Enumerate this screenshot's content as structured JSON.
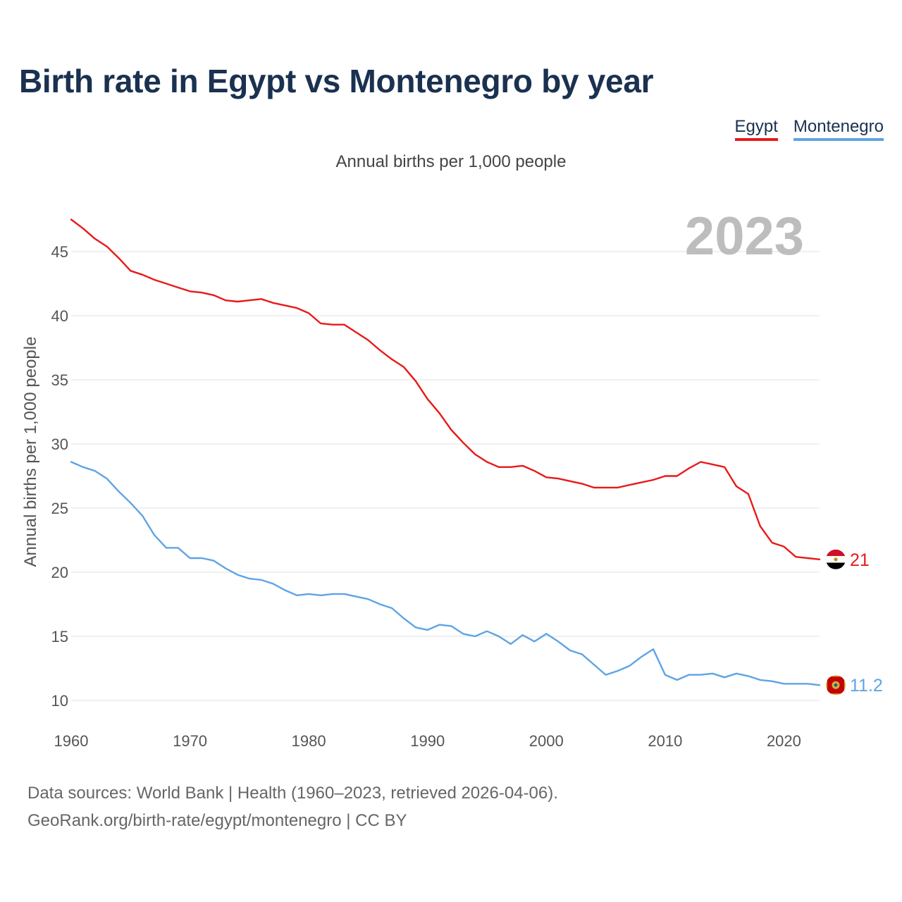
{
  "title": "Birth rate in Egypt vs Montenegro by year",
  "subtitle": "Annual births per 1,000 people",
  "legend": [
    {
      "name": "Egypt",
      "color": "#e8191a"
    },
    {
      "name": "Montenegro",
      "color": "#5ea4e4"
    }
  ],
  "footer": {
    "line1": "Data sources: World Bank | Health (1960–2023, retrieved 2026-04-06).",
    "line2": "GeoRank.org/birth-rate/egypt/montenegro | CC BY"
  },
  "chart_data": {
    "type": "line",
    "title": "Birth rate in Egypt vs Montenegro by year",
    "ylabel": "Annual births per 1,000 people",
    "xlabel": "",
    "year_badge": "2023",
    "ylim": [
      8.5,
      49
    ],
    "xlim": [
      1960,
      2023
    ],
    "x_ticks": [
      1960,
      1970,
      1980,
      1990,
      2000,
      2010,
      2020
    ],
    "y_ticks": [
      10,
      15,
      20,
      25,
      30,
      35,
      40,
      45
    ],
    "grid": true,
    "x": [
      1960,
      1961,
      1962,
      1963,
      1964,
      1965,
      1966,
      1967,
      1968,
      1969,
      1970,
      1971,
      1972,
      1973,
      1974,
      1975,
      1976,
      1977,
      1978,
      1979,
      1980,
      1981,
      1982,
      1983,
      1984,
      1985,
      1986,
      1987,
      1988,
      1989,
      1990,
      1991,
      1992,
      1993,
      1994,
      1995,
      1996,
      1997,
      1998,
      1999,
      2000,
      2001,
      2002,
      2003,
      2004,
      2005,
      2006,
      2007,
      2008,
      2009,
      2010,
      2011,
      2012,
      2013,
      2014,
      2015,
      2016,
      2017,
      2018,
      2019,
      2020,
      2021,
      2022,
      2023
    ],
    "series": [
      {
        "name": "Egypt",
        "color": "#e8191a",
        "end_label": "21",
        "values": [
          47.5,
          46.8,
          46.0,
          45.4,
          44.5,
          43.5,
          43.2,
          42.8,
          42.5,
          42.2,
          41.9,
          41.8,
          41.6,
          41.2,
          41.1,
          41.2,
          41.3,
          41.0,
          40.8,
          40.6,
          40.2,
          39.4,
          39.3,
          39.3,
          38.7,
          38.1,
          37.3,
          36.6,
          36.0,
          34.9,
          33.5,
          32.4,
          31.1,
          30.1,
          29.2,
          28.6,
          28.2,
          28.2,
          28.3,
          27.9,
          27.4,
          27.3,
          27.1,
          26.9,
          26.6,
          26.6,
          26.6,
          26.8,
          27.0,
          27.2,
          27.5,
          27.5,
          28.1,
          28.6,
          28.4,
          28.2,
          26.7,
          26.1,
          23.6,
          22.3,
          22.0,
          21.2,
          21.1,
          21.0
        ]
      },
      {
        "name": "Montenegro",
        "color": "#5ea4e4",
        "end_label": "11.2",
        "values": [
          28.6,
          28.2,
          27.9,
          27.3,
          26.3,
          25.4,
          24.4,
          22.9,
          21.9,
          21.9,
          21.1,
          21.1,
          20.9,
          20.3,
          19.8,
          19.5,
          19.4,
          19.1,
          18.6,
          18.2,
          18.3,
          18.2,
          18.3,
          18.3,
          18.1,
          17.9,
          17.5,
          17.2,
          16.4,
          15.7,
          15.5,
          15.9,
          15.8,
          15.2,
          15.0,
          15.4,
          15.0,
          14.4,
          15.1,
          14.6,
          15.2,
          14.6,
          13.9,
          13.6,
          12.8,
          12.0,
          12.3,
          12.7,
          13.4,
          14.0,
          12.0,
          11.6,
          12.0,
          12.0,
          12.1,
          11.8,
          12.1,
          11.9,
          11.6,
          11.5,
          11.3,
          11.3,
          11.3,
          11.2
        ]
      }
    ]
  }
}
